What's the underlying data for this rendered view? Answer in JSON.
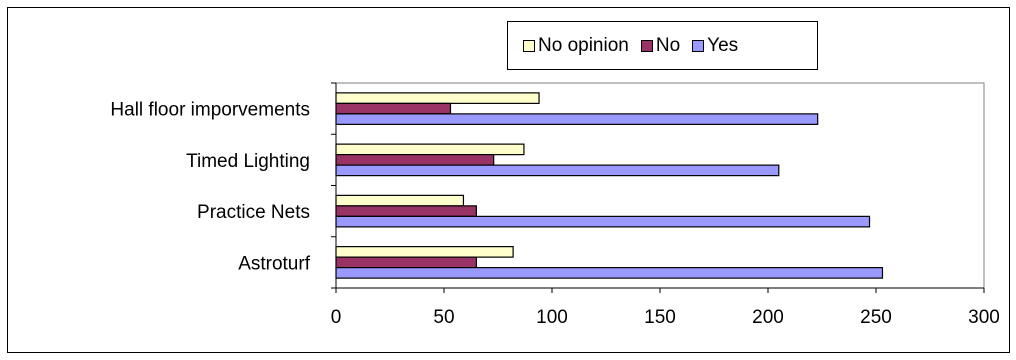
{
  "chart_data": {
    "type": "bar",
    "orientation": "horizontal",
    "categories": [
      "Astroturf",
      "Practice Nets",
      "Timed Lighting",
      "Hall floor imporvements"
    ],
    "series": [
      {
        "name": "No opinion",
        "values": [
          82,
          59,
          87,
          94
        ],
        "color": "#ffffcc"
      },
      {
        "name": "No",
        "values": [
          65,
          65,
          73,
          53
        ],
        "color": "#993366"
      },
      {
        "name": "Yes",
        "values": [
          253,
          247,
          205,
          223
        ],
        "color": "#9999ff"
      }
    ],
    "xlim": [
      0,
      300
    ],
    "xticks": [
      "0",
      "50",
      "100",
      "150",
      "200",
      "250",
      "300"
    ],
    "legend_position": "top",
    "grid": false
  }
}
